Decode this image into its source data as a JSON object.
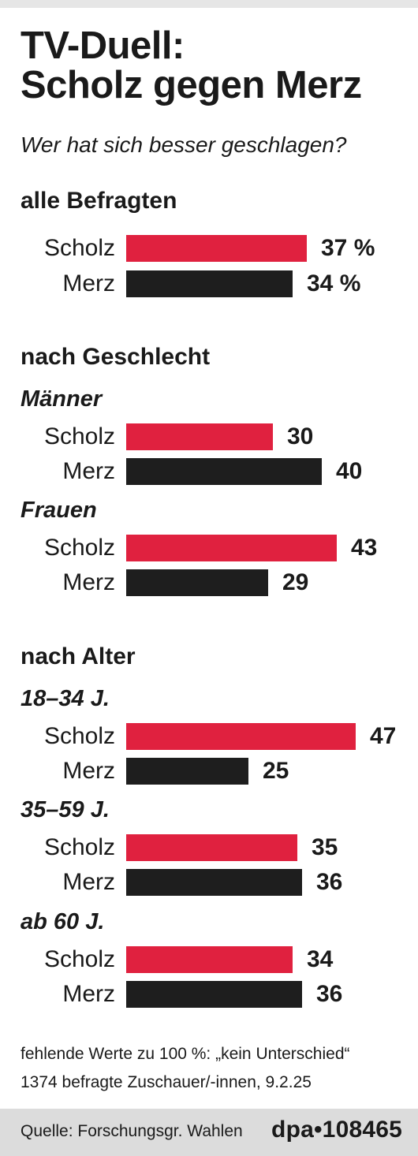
{
  "title_line1": "TV-Duell:",
  "title_line2": "Scholz gegen Merz",
  "subtitle": "Wer hat sich besser geschlagen?",
  "colors": {
    "scholz": "#e0213f",
    "merz": "#1e1e1e"
  },
  "sections": {
    "all": {
      "heading": "alle Befragten",
      "scholz": {
        "label": "Scholz",
        "value": 37,
        "display": "37 %"
      },
      "merz": {
        "label": "Merz",
        "value": 34,
        "display": "34 %"
      }
    },
    "gender": {
      "heading": "nach Geschlecht",
      "men": {
        "label": "Männer",
        "scholz": {
          "label": "Scholz",
          "value": 30,
          "display": "30"
        },
        "merz": {
          "label": "Merz",
          "value": 40,
          "display": "40"
        }
      },
      "women": {
        "label": "Frauen",
        "scholz": {
          "label": "Scholz",
          "value": 43,
          "display": "43"
        },
        "merz": {
          "label": "Merz",
          "value": 29,
          "display": "29"
        }
      }
    },
    "age": {
      "heading": "nach Alter",
      "a18": {
        "label": "18–34 J.",
        "scholz": {
          "label": "Scholz",
          "value": 47,
          "display": "47"
        },
        "merz": {
          "label": "Merz",
          "value": 25,
          "display": "25"
        }
      },
      "a35": {
        "label": "35–59 J.",
        "scholz": {
          "label": "Scholz",
          "value": 35,
          "display": "35"
        },
        "merz": {
          "label": "Merz",
          "value": 36,
          "display": "36"
        }
      },
      "a60": {
        "label": "ab 60 J.",
        "scholz": {
          "label": "Scholz",
          "value": 34,
          "display": "34"
        },
        "merz": {
          "label": "Merz",
          "value": 36,
          "display": "36"
        }
      }
    }
  },
  "footnote_line1": "fehlende Werte zu 100 %: „kein Unterschied“",
  "footnote_line2": "1374 befragte Zuschauer/-innen, 9.2.25",
  "source": "Quelle: Forschungsgr. Wahlen",
  "agency": "dpa•108465",
  "chart_data": {
    "type": "bar",
    "orientation": "horizontal",
    "title": "TV-Duell: Scholz gegen Merz",
    "subtitle": "Wer hat sich besser geschlagen?",
    "unit": "%",
    "groups": [
      {
        "section": "alle Befragten",
        "group": "",
        "values": {
          "Scholz": 37,
          "Merz": 34
        }
      },
      {
        "section": "nach Geschlecht",
        "group": "Männer",
        "values": {
          "Scholz": 30,
          "Merz": 40
        }
      },
      {
        "section": "nach Geschlecht",
        "group": "Frauen",
        "values": {
          "Scholz": 43,
          "Merz": 29
        }
      },
      {
        "section": "nach Alter",
        "group": "18–34 J.",
        "values": {
          "Scholz": 47,
          "Merz": 25
        }
      },
      {
        "section": "nach Alter",
        "group": "35–59 J.",
        "values": {
          "Scholz": 35,
          "Merz": 36
        }
      },
      {
        "section": "nach Alter",
        "group": "ab 60 J.",
        "values": {
          "Scholz": 34,
          "Merz": 36
        }
      }
    ],
    "grid": false,
    "legend": "none"
  }
}
